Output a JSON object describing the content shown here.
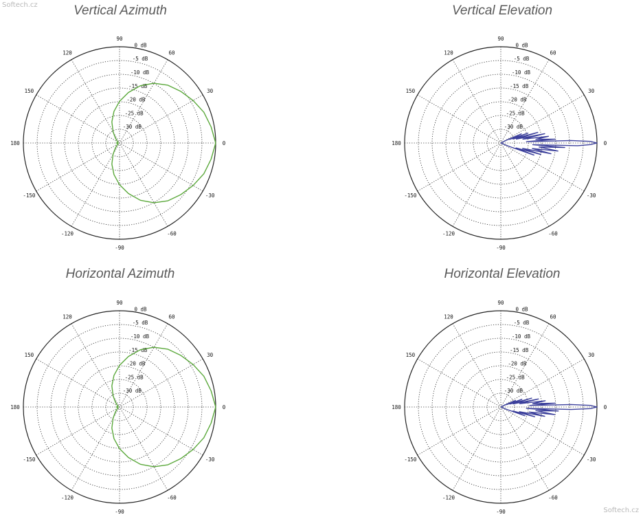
{
  "watermark": {
    "top": "Softech.cz",
    "bottom": "Softech.cz"
  },
  "charts_meta": {
    "angle_labels": [
      "0",
      "30",
      "60",
      "90",
      "120",
      "150",
      "180",
      "-150",
      "-120",
      "-90",
      "-60",
      "-30"
    ],
    "db_labels": [
      "0 dB",
      "-5 dB",
      "-10 dB",
      "-15 dB",
      "-20 dB",
      "-25 dB",
      "-30 dB"
    ]
  },
  "colors": {
    "azimuth_trace": "#5aa83a",
    "elevation_trace": "#3b3f9b",
    "grid": "#222222",
    "title": "#595959"
  },
  "chart_data": [
    {
      "type": "polar",
      "title": "Vertical Azimuth",
      "r_range_db": [
        -30,
        0
      ],
      "grid": true,
      "series": [
        {
          "theta_deg": [
            0,
            10,
            20,
            30,
            40,
            50,
            60,
            70,
            80,
            90,
            100,
            110,
            120,
            130,
            140,
            150,
            160,
            170,
            180,
            190,
            200,
            210,
            220,
            230,
            240,
            250,
            260,
            270,
            280,
            290,
            300,
            310,
            320,
            330,
            340,
            350
          ],
          "gain_db": [
            0,
            -1,
            -2,
            -3.5,
            -5,
            -6.5,
            -8.5,
            -11,
            -14,
            -17,
            -20,
            -23,
            -26,
            -28,
            -29,
            -29.5,
            -29.5,
            -29.5,
            -29,
            -29.5,
            -29.5,
            -29.5,
            -29,
            -28,
            -26,
            -23,
            -20,
            -17,
            -14,
            -11,
            -8.5,
            -6.5,
            -5,
            -3.5,
            -2,
            -1
          ]
        }
      ]
    },
    {
      "type": "polar",
      "title": "Vertical Elevation",
      "r_range_db": [
        -30,
        0
      ],
      "grid": true,
      "series": [
        {
          "theta_deg": [
            -30,
            -22,
            -20,
            -18,
            -16,
            -14,
            -12,
            -10,
            -8,
            -6,
            -4,
            -3,
            -2,
            -1,
            0,
            1,
            2,
            3,
            4,
            6,
            8,
            10,
            12,
            14,
            16,
            18,
            20,
            22,
            24,
            26,
            30
          ],
          "gain_db": [
            -30,
            -27,
            -19,
            -25,
            -17,
            -23,
            -14,
            -20,
            -12,
            -18,
            -10,
            -20,
            -6,
            -2,
            0,
            -2,
            -8,
            -22,
            -13,
            -19,
            -15,
            -23,
            -16,
            -25,
            -18,
            -26,
            -21,
            -27,
            -23,
            -28,
            -30
          ]
        }
      ]
    },
    {
      "type": "polar",
      "title": "Horizontal Azimuth",
      "r_range_db": [
        -30,
        0
      ],
      "grid": true,
      "series": [
        {
          "theta_deg": [
            0,
            10,
            20,
            30,
            40,
            50,
            60,
            70,
            80,
            90,
            100,
            110,
            120,
            130,
            140,
            150,
            160,
            170,
            180,
            190,
            200,
            210,
            220,
            230,
            240,
            250,
            260,
            270,
            280,
            290,
            300,
            310,
            320,
            330,
            340,
            350
          ],
          "gain_db": [
            0,
            -1,
            -2,
            -3.5,
            -5,
            -6.5,
            -8.5,
            -11,
            -14,
            -17,
            -20,
            -23,
            -26,
            -28,
            -29,
            -29.5,
            -29.5,
            -29.5,
            -29,
            -29.5,
            -29.5,
            -29.5,
            -29,
            -28,
            -26,
            -23,
            -20,
            -17,
            -14,
            -11,
            -8.5,
            -6.5,
            -5,
            -3.5,
            -2,
            -1
          ]
        }
      ]
    },
    {
      "type": "polar",
      "title": "Horizontal Elevation",
      "r_range_db": [
        -30,
        0
      ],
      "grid": true,
      "series": [
        {
          "theta_deg": [
            -30,
            -22,
            -20,
            -18,
            -16,
            -14,
            -12,
            -10,
            -8,
            -6,
            -4,
            -3,
            -2,
            -1,
            0,
            1,
            2,
            3,
            4,
            6,
            8,
            10,
            12,
            14,
            16,
            18,
            20,
            22,
            24,
            26,
            30
          ],
          "gain_db": [
            -30,
            -28,
            -22,
            -26,
            -19,
            -24,
            -16,
            -21,
            -13,
            -19,
            -12,
            -22,
            -8,
            -2,
            0,
            -2,
            -8,
            -21,
            -13,
            -20,
            -16,
            -24,
            -18,
            -26,
            -20,
            -27,
            -23,
            -28,
            -25,
            -29,
            -30
          ]
        }
      ]
    }
  ]
}
